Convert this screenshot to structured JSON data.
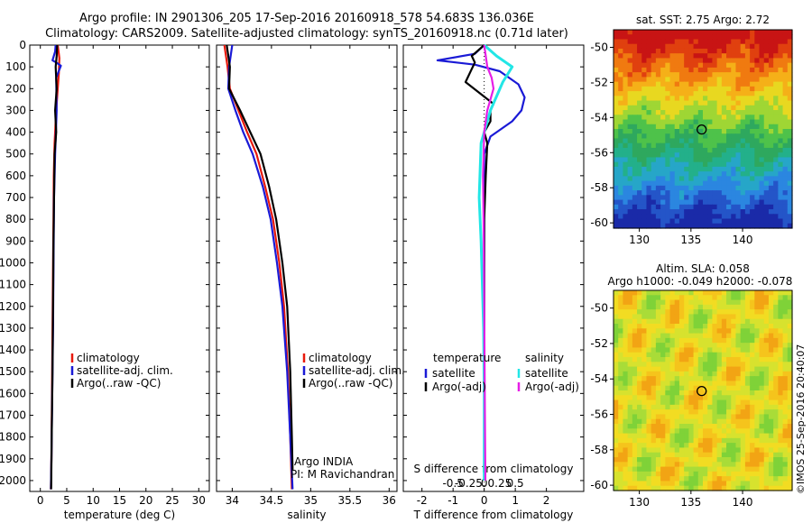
{
  "header": {
    "line1": "Argo profile: IN 2901306_205 17-Sep-2016 20160918_578 54.683S 136.036E",
    "line2": "Climatology: CARS2009. Satellite-adjusted climatology: synTS_20160918.nc (0.71d later)"
  },
  "colors": {
    "climatology": "#e8190c",
    "satellite": "#1a1ad6",
    "argo": "#000000",
    "sal_satellite": "#22e6e6",
    "sal_argo": "#e61ee6"
  },
  "chart_data": [
    {
      "type": "line",
      "id": "temperature",
      "xlabel": "temperature (deg C)",
      "ylabel": "",
      "xlim": [
        -2,
        32
      ],
      "ylim": [
        2050,
        0
      ],
      "xticks": [
        0,
        5,
        10,
        15,
        20,
        25,
        30
      ],
      "yticks": [
        0,
        100,
        200,
        300,
        400,
        500,
        600,
        700,
        800,
        900,
        1000,
        1100,
        1200,
        1300,
        1400,
        1500,
        1600,
        1700,
        1800,
        1900,
        2000
      ],
      "legend": [
        "climatology",
        "satellite-adj. clim.",
        "Argo(..raw -QC)"
      ],
      "series": [
        {
          "name": "climatology",
          "color": "#e8190c",
          "x": [
            3.3,
            3.6,
            3.5,
            3.3,
            3.0,
            2.7,
            2.55,
            2.5,
            2.4,
            2.3,
            2.2,
            2.1,
            2.0
          ],
          "y": [
            0,
            60,
            130,
            200,
            300,
            450,
            600,
            800,
            1000,
            1300,
            1600,
            1900,
            2040
          ]
        },
        {
          "name": "satellite-adj. clim.",
          "color": "#1a1ad6",
          "x": [
            2.9,
            2.8,
            2.3,
            3.0,
            3.9,
            3.0,
            3.1,
            2.8,
            2.6,
            2.5,
            2.4,
            2.3,
            2.2,
            2.1,
            2.0
          ],
          "y": [
            0,
            30,
            70,
            80,
            95,
            150,
            300,
            500,
            700,
            1000,
            1300,
            1500,
            1700,
            1900,
            2040
          ]
        },
        {
          "name": "Argo(..raw -QC)",
          "color": "#000000",
          "x": [
            3.2,
            3.1,
            2.9,
            3.1,
            2.8,
            3.0,
            2.7,
            2.6,
            2.5,
            2.4,
            2.3,
            2.15,
            2.05
          ],
          "y": [
            0,
            50,
            100,
            200,
            300,
            400,
            500,
            700,
            900,
            1200,
            1500,
            1800,
            2040
          ]
        }
      ]
    },
    {
      "type": "line",
      "id": "salinity",
      "xlabel": "salinity",
      "ylabel": "",
      "xlim": [
        33.8,
        36.1
      ],
      "ylim": [
        2050,
        0
      ],
      "xticks": [
        34,
        34.5,
        35,
        35.5,
        36
      ],
      "xtick_labels": [
        "34",
        "34.5",
        "35",
        "35.5",
        "36"
      ],
      "legend": [
        "climatology",
        "satellite-adj. clim.",
        "Argo(..raw -QC)"
      ],
      "annotation": [
        "Argo INDIA",
        "PI: M Ravichandran"
      ],
      "series": [
        {
          "name": "climatology",
          "color": "#e8190c",
          "x": [
            33.9,
            33.94,
            33.97,
            34.08,
            34.19,
            34.31,
            34.42,
            34.52,
            34.6,
            34.66,
            34.71,
            34.74,
            34.76
          ],
          "y": [
            0,
            100,
            200,
            300,
            400,
            500,
            650,
            800,
            1000,
            1200,
            1500,
            1800,
            2040
          ]
        },
        {
          "name": "satellite-adj. clim.",
          "color": "#1a1ad6",
          "x": [
            34.0,
            33.96,
            33.95,
            34.04,
            34.14,
            34.26,
            34.39,
            34.49,
            34.57,
            34.64,
            34.7,
            34.74,
            34.77
          ],
          "y": [
            0,
            100,
            200,
            300,
            400,
            500,
            650,
            800,
            1000,
            1200,
            1500,
            1800,
            2040
          ]
        },
        {
          "name": "Argo(..raw -QC)",
          "color": "#000000",
          "x": [
            33.93,
            33.97,
            33.96,
            34.1,
            34.23,
            34.36,
            34.47,
            34.56,
            34.64,
            34.7,
            34.74,
            34.76,
            34.77
          ],
          "y": [
            0,
            100,
            200,
            300,
            400,
            500,
            650,
            800,
            1000,
            1200,
            1500,
            1800,
            1950
          ]
        }
      ]
    },
    {
      "type": "line",
      "id": "differences",
      "xlabel": "T difference from climatology",
      "xlabel2": "S difference from climatology",
      "xlim": [
        -2.6,
        3.2
      ],
      "ylim": [
        2050,
        0
      ],
      "xticks": [
        -2,
        -1,
        0,
        1,
        2
      ],
      "xticks2": [
        -0.5,
        -0.25,
        0,
        0.25,
        0.5
      ],
      "xtick2_labels": [
        "-0.5",
        "-0.25",
        "0",
        "0.25",
        "0.5"
      ],
      "legend_groups": [
        {
          "title": "temperature",
          "items": [
            "satellite",
            "Argo(-adj)"
          ]
        },
        {
          "title": "salinity",
          "items": [
            "satellite",
            "Argo(-adj)"
          ]
        }
      ],
      "series": [
        {
          "name": "satellite",
          "group": "temperature",
          "color": "#1a1ad6",
          "x": [
            0.0,
            -0.3,
            -1.5,
            -0.3,
            0.5,
            1.1,
            1.3,
            1.2,
            0.9,
            0.2,
            0.0,
            0.0,
            0.0
          ],
          "y": [
            0,
            40,
            70,
            90,
            120,
            180,
            240,
            300,
            350,
            420,
            500,
            700,
            2000
          ]
        },
        {
          "name": "Argo(-adj)",
          "group": "temperature",
          "color": "#000000",
          "x": [
            0.0,
            -0.4,
            -0.3,
            -0.6,
            0.3,
            0.2,
            0.2,
            0.0,
            0.1,
            0.05,
            0.0,
            0.0
          ],
          "y": [
            0,
            50,
            80,
            170,
            270,
            300,
            350,
            400,
            450,
            600,
            800,
            2000
          ]
        },
        {
          "name": "satellite",
          "group": "salinity",
          "color": "#22e6e6",
          "x": [
            0.0,
            0.2,
            0.45,
            0.3,
            0.1,
            -0.05,
            -0.08,
            -0.05,
            -0.03,
            -0.01,
            0.0,
            0.0
          ],
          "y": [
            0,
            50,
            100,
            170,
            300,
            450,
            700,
            900,
            1100,
            1300,
            1600,
            2000
          ]
        },
        {
          "name": "Argo(-adj)",
          "group": "salinity",
          "color": "#e61ee6",
          "x": [
            0.0,
            0.05,
            0.12,
            0.15,
            0.05,
            0.0,
            -0.02,
            -0.01,
            0.0,
            0.01,
            0.02
          ],
          "y": [
            0,
            100,
            150,
            200,
            300,
            400,
            600,
            800,
            1200,
            1600,
            2000
          ]
        }
      ]
    },
    {
      "type": "heatmap",
      "id": "sst_map",
      "title": "sat. SST: 2.75 Argo: 2.72",
      "xlim": [
        127.5,
        144.8
      ],
      "ylim": [
        -60.3,
        -49.0
      ],
      "xticks": [
        130,
        135,
        140
      ],
      "yticks": [
        -50,
        -52,
        -54,
        -56,
        -58,
        -60
      ],
      "marker": {
        "lon": 136.036,
        "lat": -54.683
      }
    },
    {
      "type": "heatmap",
      "id": "sla_map",
      "title": "Altim. SLA: 0.058",
      "subtitle": "Argo h1000: -0.049 h2000: -0.078",
      "xlim": [
        127.5,
        144.8
      ],
      "ylim": [
        -60.3,
        -49.0
      ],
      "xticks": [
        130,
        135,
        140
      ],
      "yticks": [
        -50,
        -52,
        -54,
        -56,
        -58,
        -60
      ],
      "marker": {
        "lon": 136.036,
        "lat": -54.683
      }
    }
  ],
  "footer": {
    "credit": "©IMOS 25-Sep-2016 20:40:07"
  }
}
